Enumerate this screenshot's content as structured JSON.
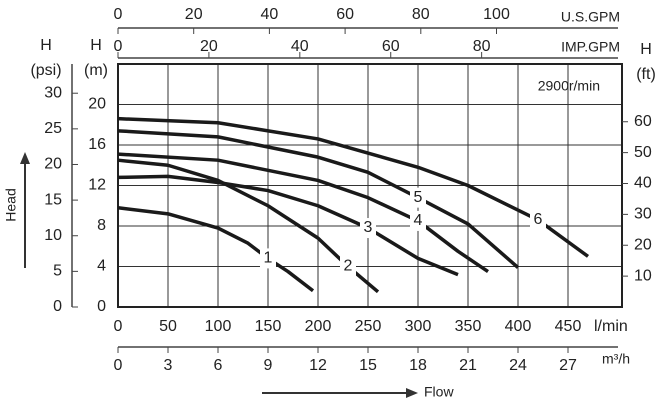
{
  "chart_data": {
    "type": "line",
    "annotation": "2900r/min",
    "head_label": "Head",
    "flow_label": "Flow",
    "color": "#1a1a1a",
    "grid": true,
    "xlim": [
      0,
      500
    ],
    "xticks": [
      0,
      50,
      100,
      150,
      200,
      250,
      300,
      350,
      400,
      450
    ],
    "x_unit": "l/min",
    "ylim": [
      0,
      24
    ],
    "yticks": [
      0,
      4,
      8,
      12,
      16,
      20
    ],
    "y_label": "H",
    "y_unit": "(m)",
    "psi_axis": {
      "label": "H",
      "unit": "(psi)",
      "lim": [
        0,
        34.1
      ],
      "ticks": [
        0,
        5,
        10,
        15,
        20,
        25,
        30
      ]
    },
    "ft_axis": {
      "label": "H",
      "unit": "(ft)",
      "lim": [
        0,
        78.7
      ],
      "ticks": [
        10,
        20,
        30,
        40,
        50,
        60
      ]
    },
    "usgpm_axis": {
      "label": "U.S.GPM",
      "lim": [
        0,
        132.1
      ],
      "ticks": [
        0,
        20,
        40,
        60,
        80,
        100
      ]
    },
    "impgpm_axis": {
      "label": "IMP.GPM",
      "lim": [
        0,
        110
      ],
      "ticks": [
        0,
        20,
        40,
        60,
        80
      ]
    },
    "m3h_axis": {
      "label": "m³/h",
      "lim": [
        0,
        30
      ],
      "ticks": [
        0,
        3,
        6,
        9,
        12,
        15,
        18,
        21,
        24,
        27
      ]
    },
    "series": [
      {
        "name": "1",
        "x": [
          0,
          50,
          100,
          130,
          150,
          170,
          195
        ],
        "values": [
          9.8,
          9.2,
          7.8,
          6.3,
          4.8,
          3.5,
          1.6
        ]
      },
      {
        "name": "2",
        "x": [
          0,
          50,
          100,
          150,
          200,
          230,
          260
        ],
        "values": [
          14.5,
          14.0,
          12.5,
          10.0,
          6.8,
          4.0,
          1.5
        ]
      },
      {
        "name": "3",
        "x": [
          0,
          50,
          100,
          150,
          200,
          250,
          300,
          340
        ],
        "values": [
          12.8,
          12.9,
          12.3,
          11.5,
          10.0,
          7.8,
          4.8,
          3.2
        ]
      },
      {
        "name": "4",
        "x": [
          0,
          100,
          200,
          250,
          300,
          340,
          370
        ],
        "values": [
          15.1,
          14.5,
          12.5,
          10.8,
          8.5,
          5.5,
          3.5
        ]
      },
      {
        "name": "5",
        "x": [
          0,
          100,
          200,
          250,
          300,
          350,
          400
        ],
        "values": [
          17.4,
          16.8,
          14.8,
          13.3,
          10.8,
          8.2,
          3.9
        ]
      },
      {
        "name": "6",
        "x": [
          0,
          100,
          200,
          300,
          350,
          420,
          470
        ],
        "values": [
          18.6,
          18.2,
          16.6,
          13.8,
          12.0,
          8.6,
          5.0
        ]
      }
    ]
  }
}
